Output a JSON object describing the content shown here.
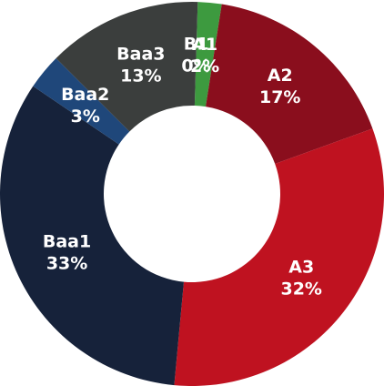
{
  "chart_data": {
    "type": "donut",
    "categories": [
      "A1",
      "A2",
      "A3",
      "Baa1",
      "Baa2",
      "Baa3",
      "B1"
    ],
    "values": [
      2,
      17,
      32,
      33,
      3,
      13,
      0
    ],
    "value_labels": [
      "2%",
      "17%",
      "32%",
      "33%",
      "3%",
      "13%",
      "0%"
    ],
    "colors": [
      "#3d9a3f",
      "#8a0e1d",
      "#bf1220",
      "#16223a",
      "#1f477a",
      "#3b3e3d",
      "#9a9a9a"
    ]
  }
}
